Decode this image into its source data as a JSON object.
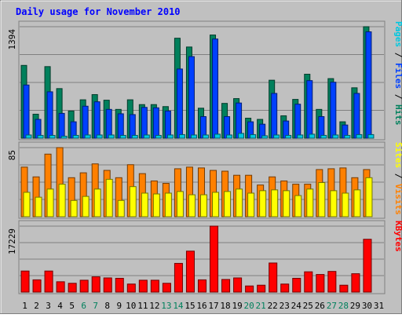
{
  "chart_data": {
    "type": "bar",
    "title": "Daily usage for November 2010",
    "categories": [
      "1",
      "2",
      "3",
      "4",
      "5",
      "6",
      "7",
      "8",
      "9",
      "10",
      "11",
      "12",
      "13",
      "14",
      "15",
      "16",
      "17",
      "18",
      "19",
      "20",
      "21",
      "22",
      "23",
      "24",
      "25",
      "26",
      "27",
      "28",
      "29",
      "30",
      "31"
    ],
    "weekend_days": [
      "6",
      "7",
      "13",
      "14",
      "20",
      "21",
      "27",
      "28"
    ],
    "panels": [
      {
        "id": "hits-files-pages",
        "ymax": 1394,
        "ymax_label": "1394",
        "grid": true,
        "legend_parts": [
          "Pages",
          "Files",
          "Hits"
        ],
        "series": [
          {
            "name": "Hits",
            "color": "#00805c",
            "values": [
              910,
              300,
              895,
              620,
              340,
              480,
              545,
              475,
              360,
              480,
              420,
              420,
              395,
              1250,
              1140,
              375,
              1290,
              435,
              495,
              250,
              235,
              725,
              280,
              485,
              800,
              360,
              745,
              205,
              630,
              1394,
              0
            ]
          },
          {
            "name": "Files",
            "color": "#0040ff",
            "values": [
              665,
              235,
              580,
              310,
              205,
              400,
              455,
              360,
              305,
              295,
              385,
              380,
              340,
              865,
              1020,
              270,
              1240,
              270,
              440,
              205,
              175,
              560,
              215,
              425,
              720,
              270,
              700,
              165,
              560,
              1330,
              0
            ]
          },
          {
            "name": "Pages",
            "color": "#00c8e0",
            "values": [
              40,
              35,
              35,
              25,
              35,
              40,
              40,
              40,
              35,
              35,
              40,
              35,
              40,
              45,
              40,
              40,
              50,
              40,
              60,
              45,
              30,
              40,
              35,
              40,
              50,
              35,
              40,
              35,
              45,
              45,
              0
            ]
          }
        ]
      },
      {
        "id": "visits-sites",
        "ymax": 85,
        "ymax_label": "85",
        "grid": true,
        "legend_parts": [
          "Sites",
          "Visits"
        ],
        "series": [
          {
            "name": "Visits",
            "color": "#ff8000",
            "values": [
              61,
              49,
              77,
              85,
              48,
              54,
              65,
              57,
              48,
              64,
              53,
              44,
              41,
              59,
              61,
              60,
              57,
              56,
              51,
              51,
              39,
              49,
              44,
              40,
              40,
              58,
              59,
              60,
              48,
              58,
              0
            ]
          },
          {
            "name": "Sites",
            "color": "#ffff00",
            "values": [
              30,
              24,
              34,
              40,
              20,
              25,
              34,
              46,
              20,
              37,
              29,
              28,
              29,
              31,
              27,
              27,
              30,
              31,
              34,
              29,
              32,
              33,
              32,
              26,
              34,
              42,
              32,
              29,
              33,
              48,
              0
            ]
          }
        ]
      },
      {
        "id": "kbytes",
        "ymax": 17229,
        "ymax_label": "17229",
        "grid": true,
        "legend_parts": [
          "KBytes"
        ],
        "series": [
          {
            "name": "KBytes",
            "color": "#ff0000",
            "values": [
              5500,
              3200,
              5500,
              2700,
              2300,
              3100,
              4000,
              3700,
              3600,
              2100,
              3100,
              3100,
              2300,
              7500,
              10700,
              3200,
              17229,
              3300,
              3700,
              1600,
              1800,
              7600,
              2100,
              3600,
              5300,
              4600,
              5400,
              1800,
              4800,
              13800,
              0
            ]
          }
        ]
      }
    ]
  }
}
